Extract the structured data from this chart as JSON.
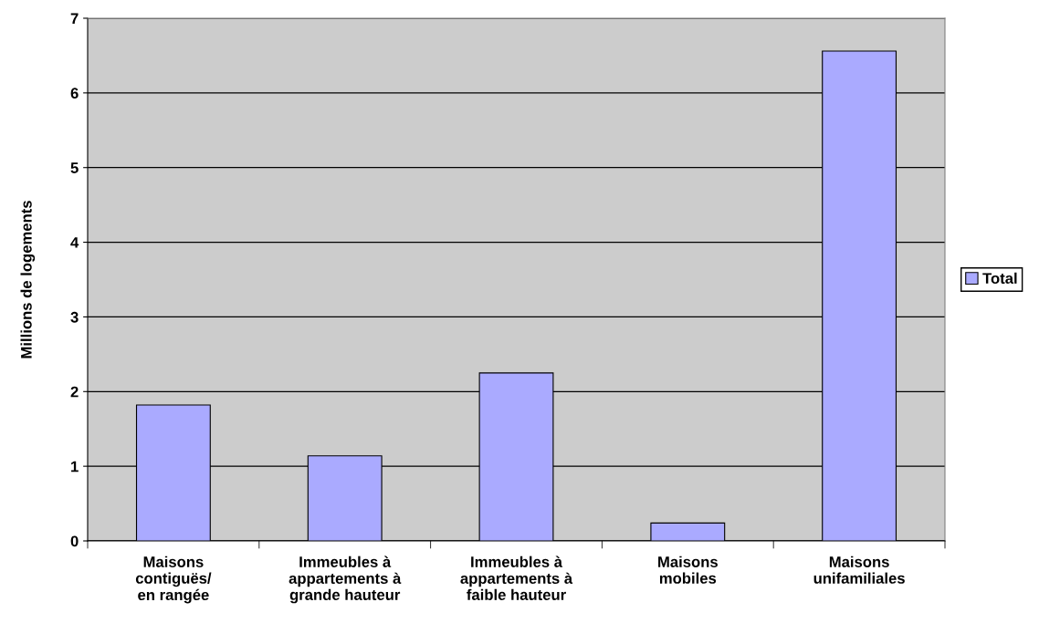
{
  "chart_data": {
    "type": "bar",
    "ylabel": "Millions de logements",
    "categories": [
      "Maisons\ncontiguës/\nen rangée",
      "Immeubles à\nappartements à\ngrande hauteur",
      "Immeubles à\nappartements à\nfaible hauteur",
      "Maisons\nmobiles",
      "Maisons\nunifamiliales"
    ],
    "series": [
      {
        "name": "Total",
        "color": "#aaaaff",
        "values": [
          1.82,
          1.14,
          2.25,
          0.24,
          6.56
        ]
      }
    ],
    "ylim": [
      0,
      7
    ],
    "yticks": [
      0,
      1,
      2,
      3,
      4,
      5,
      6,
      7
    ],
    "grid": "y",
    "legend": "right"
  }
}
